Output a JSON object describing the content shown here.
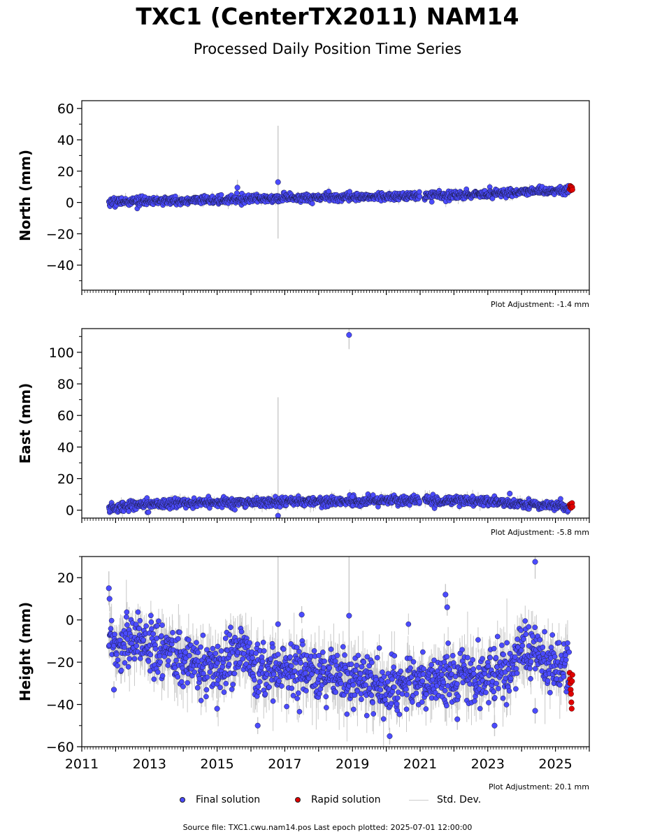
{
  "page": {
    "title": "TXC1 (CenterTX2011) NAM14",
    "subtitle": "Processed Daily Position Time Series",
    "source_text": "Source file: TXC1.cwu.nam14.pos  Last epoch plotted: 2025-07-01 12:00:00"
  },
  "legend": {
    "final_label": "Final solution",
    "rapid_label": "Rapid solution",
    "std_label": "Std. Dev."
  },
  "colors": {
    "final": "#4b4bff",
    "rapid": "#e00000",
    "std_dev": "#c8c8c8",
    "marker_edge": "#1a1a40"
  },
  "chart_data": [
    {
      "type": "scatter",
      "ylabel": "North (mm)",
      "plot_adjustment": "Plot Adjustment: -1.4 mm",
      "xlim": [
        2011,
        2026
      ],
      "ylim": [
        -56,
        65
      ],
      "yticks": [
        -40,
        -20,
        0,
        20,
        40,
        60
      ],
      "ytick_labels": [
        "−40",
        "−20",
        "0",
        "20",
        "40",
        "60"
      ],
      "show_xtick_labels": false,
      "trend": {
        "x": [
          2011.8,
          2013.0,
          2015.0,
          2017.0,
          2019.0,
          2021.0,
          2023.0,
          2024.0,
          2025.45
        ],
        "y": [
          0.3,
          0.8,
          1.8,
          2.8,
          3.5,
          4.3,
          5.4,
          6.8,
          8.0
        ]
      },
      "noise_sd": 1.3,
      "outliers": [
        {
          "x": 2015.6,
          "y": 9.5,
          "err": 5
        },
        {
          "x": 2016.8,
          "y": 13,
          "err": 36
        }
      ],
      "rapid": {
        "x": [
          2025.42,
          2025.44,
          2025.45,
          2025.46,
          2025.47,
          2025.48,
          2025.49,
          2025.5
        ],
        "y": [
          8.5,
          10.5,
          9.2,
          7.8,
          10,
          8.8,
          9.6,
          8.2
        ]
      }
    },
    {
      "type": "scatter",
      "ylabel": "East (mm)",
      "plot_adjustment": "Plot Adjustment: -5.8 mm",
      "xlim": [
        2011,
        2026
      ],
      "ylim": [
        -5,
        115
      ],
      "yticks": [
        0,
        20,
        40,
        60,
        80,
        100
      ],
      "ytick_labels": [
        "0",
        "20",
        "40",
        "60",
        "80",
        "100"
      ],
      "show_xtick_labels": false,
      "trend": {
        "x": [
          2011.8,
          2012.3,
          2014.0,
          2016.0,
          2018.0,
          2020.0,
          2021.0,
          2023.0,
          2024.5,
          2025.45
        ],
        "y": [
          0.5,
          3.0,
          4.5,
          5.0,
          5.2,
          6.0,
          6.2,
          5.8,
          3.2,
          3.0
        ]
      },
      "noise_sd": 1.5,
      "outliers": [
        {
          "x": 2018.9,
          "y": 111,
          "err": 9
        },
        {
          "x": 2016.8,
          "y": -3.5,
          "err": 75
        },
        {
          "x": 2023.65,
          "y": 10.5,
          "err": 2
        },
        {
          "x": 2019.0,
          "y": 8.5,
          "err": 3
        }
      ],
      "rapid": {
        "x": [
          2025.42,
          2025.44,
          2025.45,
          2025.46,
          2025.47,
          2025.48,
          2025.49,
          2025.5
        ],
        "y": [
          3.5,
          2.0,
          4.0,
          1.5,
          3.0,
          2.5,
          4.5,
          2.2
        ]
      }
    },
    {
      "type": "scatter",
      "ylabel": "Height (mm)",
      "plot_adjustment": "Plot Adjustment: 20.1 mm",
      "xlim": [
        2011,
        2026
      ],
      "ylim": [
        -60,
        30
      ],
      "yticks": [
        -60,
        -40,
        -20,
        0,
        20
      ],
      "ytick_labels": [
        "−60",
        "−40",
        "−20",
        "0",
        "20"
      ],
      "show_xtick_labels": true,
      "xticks": [
        2011,
        2013,
        2015,
        2017,
        2019,
        2021,
        2023,
        2025
      ],
      "xtick_labels": [
        "2011",
        "2013",
        "2015",
        "2017",
        "2019",
        "2021",
        "2023",
        "2025"
      ],
      "trend": {
        "x": [
          2011.8,
          2012.0,
          2012.5,
          2013.0,
          2013.6,
          2014.0,
          2015.0,
          2015.8,
          2016.2,
          2017.0,
          2018.0,
          2019.0,
          2020.0,
          2020.5,
          2021.0,
          2022.0,
          2023.0,
          2023.6,
          2024.0,
          2024.5,
          2025.45
        ],
        "y": [
          -5,
          -12,
          -10,
          -12,
          -15,
          -20,
          -22,
          -14,
          -25,
          -24,
          -26,
          -30,
          -32,
          -28,
          -30,
          -26,
          -28,
          -25,
          -14,
          -18,
          -25
        ]
      },
      "noise_sd": 6.5,
      "outliers": [
        {
          "x": 2011.8,
          "y": 15,
          "err": 8
        },
        {
          "x": 2011.82,
          "y": 10,
          "err": 6
        },
        {
          "x": 2021.75,
          "y": 12,
          "err": 5
        },
        {
          "x": 2021.8,
          "y": 6,
          "err": 4
        },
        {
          "x": 2024.4,
          "y": 27.5,
          "err": 8
        },
        {
          "x": 2016.8,
          "y": -2,
          "err": 35
        },
        {
          "x": 2018.9,
          "y": 2,
          "err": 30
        },
        {
          "x": 2017.5,
          "y": 2.5,
          "err": 4
        },
        {
          "x": 2016.2,
          "y": -50,
          "err": 4
        },
        {
          "x": 2020.1,
          "y": -55,
          "err": 4
        },
        {
          "x": 2022.1,
          "y": -47,
          "err": 5
        },
        {
          "x": 2023.2,
          "y": -50,
          "err": 5
        },
        {
          "x": 2024.4,
          "y": -43,
          "err": 6
        },
        {
          "x": 2015.0,
          "y": -42,
          "err": 4
        },
        {
          "x": 2011.95,
          "y": -33,
          "err": 4
        }
      ],
      "rapid": {
        "x": [
          2025.42,
          2025.43,
          2025.44,
          2025.45,
          2025.46,
          2025.47,
          2025.48,
          2025.49,
          2025.5
        ],
        "y": [
          -25,
          -28,
          -30,
          -33,
          -35,
          -39,
          -42,
          -29,
          -26
        ]
      }
    }
  ]
}
